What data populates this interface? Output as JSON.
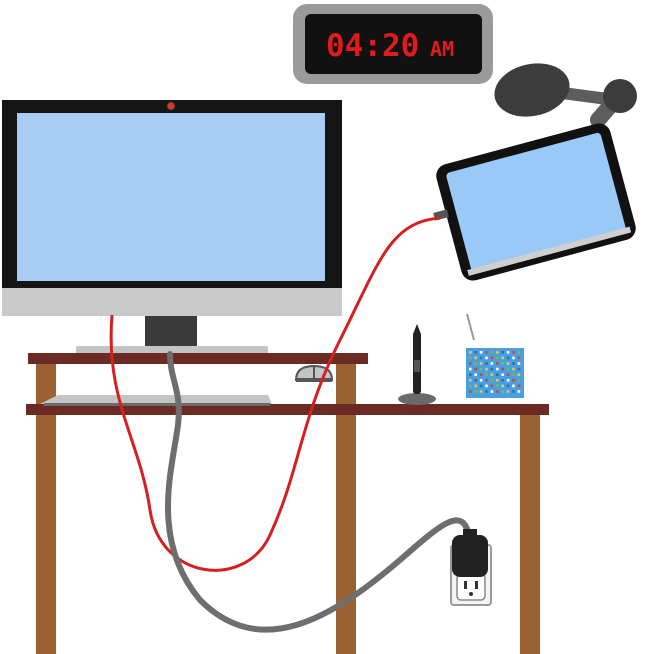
{
  "clock": {
    "time": "04:20",
    "period": "AM",
    "digit_color": "#e01b1b",
    "face_color": "#111111",
    "bezel_color": "#9a9a9a"
  },
  "colors": {
    "screen": "#a8cdf5",
    "tablet_screen": "#99c9f7",
    "desk_wood": "#9a6232",
    "desk_top": "#6b2a24",
    "red_cable": "#d42020",
    "gray_cable": "#6e6e6e",
    "monitor_frame": "#151515",
    "monitor_chin": "#c9c9c9"
  },
  "icons": {
    "monitor": "desktop-monitor-icon",
    "tablet": "tablet-icon",
    "clock": "digital-clock-icon",
    "keyboard": "keyboard-icon",
    "mouse": "mouse-icon",
    "stylus": "stylus-pen-icon",
    "charger": "power-plug-icon",
    "outlet": "wall-outlet-icon",
    "box": "pixel-box-icon",
    "lamp_arm": "tablet-arm-mount-icon"
  }
}
